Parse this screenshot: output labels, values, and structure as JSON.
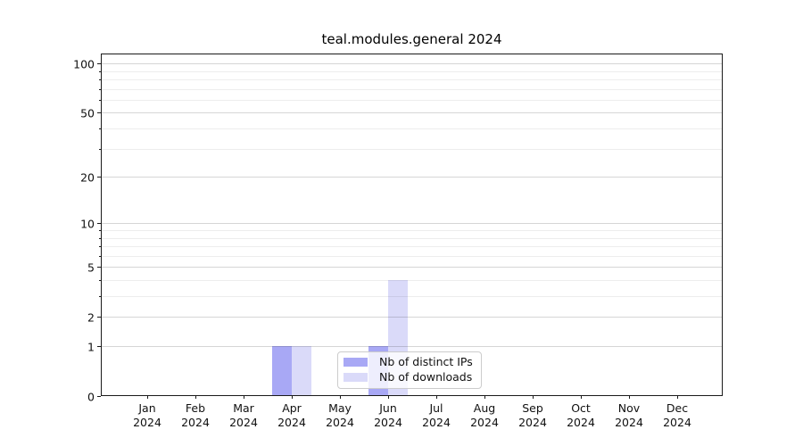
{
  "title": "teal.modules.general 2024",
  "chart_data": {
    "type": "bar",
    "title": "teal.modules.general 2024",
    "x": {
      "months": [
        "Jan",
        "Feb",
        "Mar",
        "Apr",
        "May",
        "Jun",
        "Jul",
        "Aug",
        "Sep",
        "Oct",
        "Nov",
        "Dec"
      ],
      "year": "2024"
    },
    "series": [
      {
        "name": "Nb of distinct IPs",
        "color": "#a8a8f5",
        "values": [
          0,
          0,
          0,
          1,
          0,
          1,
          0,
          0,
          0,
          0,
          0,
          0
        ]
      },
      {
        "name": "Nb of downloads",
        "color": "#dadaf9",
        "values": [
          0,
          0,
          0,
          1,
          0,
          4,
          0,
          0,
          0,
          0,
          0,
          0
        ]
      }
    ],
    "yaxis": {
      "scale": "log1p",
      "ticks": [
        0,
        1,
        2,
        5,
        10,
        20,
        50,
        100
      ],
      "minor_ticks": [
        3,
        4,
        6,
        7,
        8,
        9,
        30,
        40,
        60,
        70,
        80,
        90
      ],
      "ylim": [
        0,
        115
      ]
    },
    "legend_position": "lower center",
    "grid": "horizontal major and minor"
  },
  "colors": {
    "axis": "#1a1a1a",
    "text": "#111111",
    "grid_major": "rgba(0,0,0,0.16)",
    "grid_minor": "rgba(0,0,0,0.07)",
    "background": "#ffffff"
  }
}
